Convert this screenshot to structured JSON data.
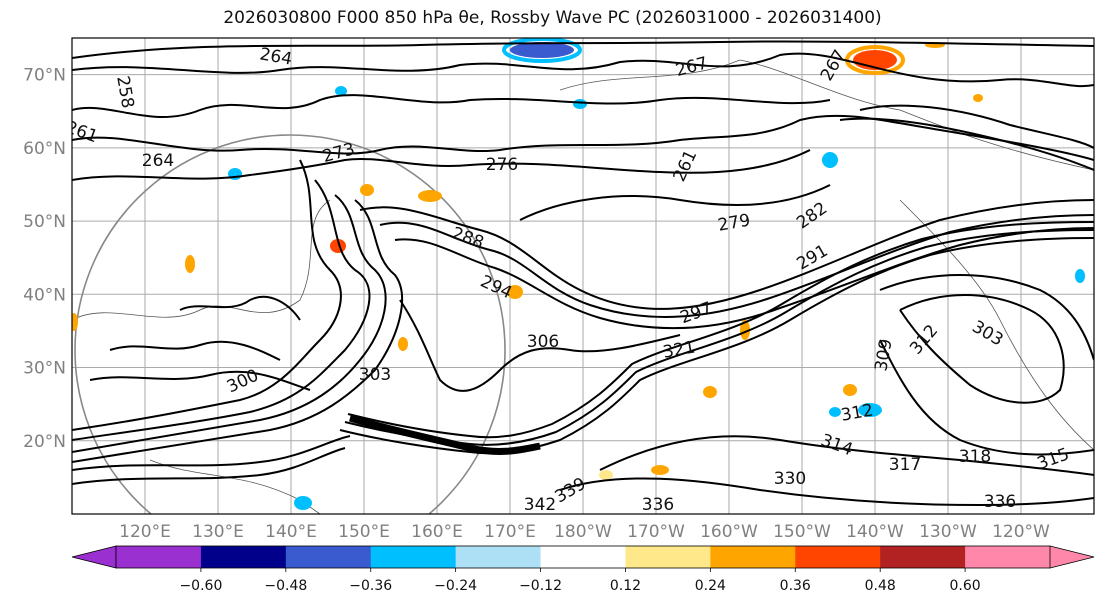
{
  "title": "2026030800 F000 850 hPa θe, Rossby Wave PC (2026031000 - 2026031400)",
  "map": {
    "lat_ticks": [
      "70°N",
      "60°N",
      "50°N",
      "40°N",
      "30°N",
      "20°N"
    ],
    "lon_ticks": [
      "120°E",
      "130°E",
      "140°E",
      "150°E",
      "160°E",
      "170°E",
      "180°W",
      "170°W",
      "160°W",
      "150°W",
      "140°W",
      "130°W",
      "120°W"
    ],
    "contour_labels": [
      "267",
      "264",
      "258",
      "261",
      "264",
      "273",
      "276",
      "267",
      "261",
      "279",
      "282",
      "288",
      "294",
      "291",
      "297",
      "300",
      "306",
      "321",
      "312",
      "303",
      "303",
      "309",
      "312",
      "314",
      "318",
      "317",
      "330",
      "336",
      "339",
      "336",
      "342",
      "315"
    ],
    "lat_range": [
      10,
      75
    ],
    "lon_range": [
      110,
      250
    ]
  },
  "colorbar": {
    "ticks": [
      "−0.60",
      "−0.48",
      "−0.36",
      "−0.24",
      "−0.12",
      "0.12",
      "0.24",
      "0.36",
      "0.48",
      "0.60"
    ],
    "colors": [
      "#9b30d0",
      "#00008b",
      "#3a5bd0",
      "#00bfff",
      "#aee0f5",
      "#ffffff",
      "#ffe88a",
      "#ffa500",
      "#ff4500",
      "#b22222",
      "#ff88aa"
    ],
    "extend_low_color": "#9b30d0",
    "extend_high_color": "#ff88aa"
  }
}
